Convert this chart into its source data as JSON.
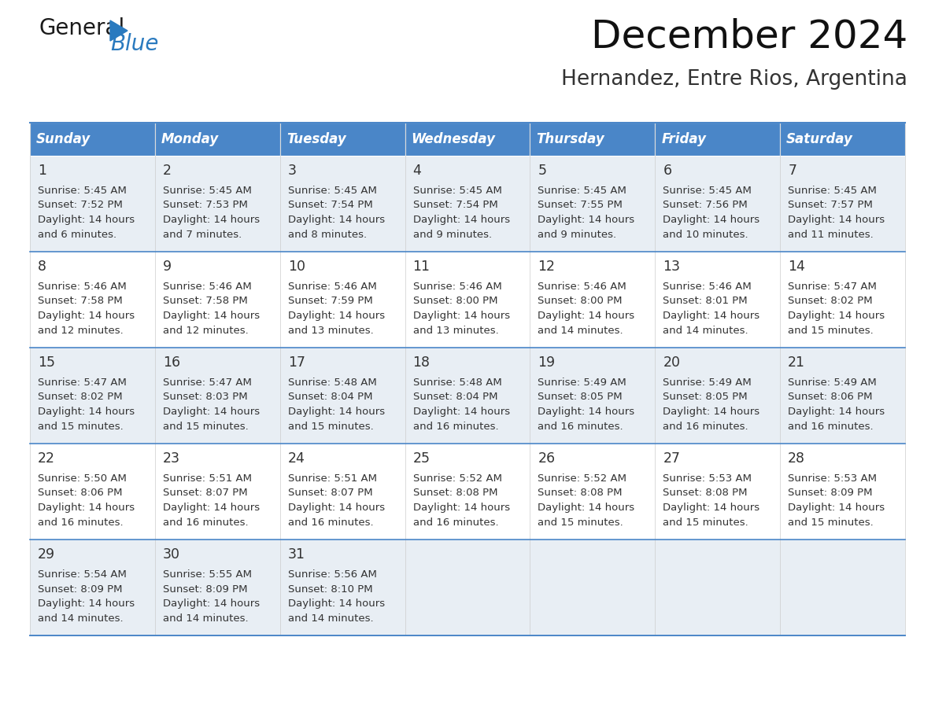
{
  "title": "December 2024",
  "subtitle": "Hernandez, Entre Rios, Argentina",
  "header_color": "#4a86c8",
  "header_text_color": "#ffffff",
  "odd_row_color": "#e8eef4",
  "even_row_color": "#ffffff",
  "border_color": "#4a86c8",
  "text_color": "#333333",
  "days_of_week": [
    "Sunday",
    "Monday",
    "Tuesday",
    "Wednesday",
    "Thursday",
    "Friday",
    "Saturday"
  ],
  "weeks": [
    [
      {
        "day": "1",
        "sunrise": "5:45 AM",
        "sunset": "7:52 PM",
        "daylight_h": "14 hours",
        "daylight_m": "and 6 minutes."
      },
      {
        "day": "2",
        "sunrise": "5:45 AM",
        "sunset": "7:53 PM",
        "daylight_h": "14 hours",
        "daylight_m": "and 7 minutes."
      },
      {
        "day": "3",
        "sunrise": "5:45 AM",
        "sunset": "7:54 PM",
        "daylight_h": "14 hours",
        "daylight_m": "and 8 minutes."
      },
      {
        "day": "4",
        "sunrise": "5:45 AM",
        "sunset": "7:54 PM",
        "daylight_h": "14 hours",
        "daylight_m": "and 9 minutes."
      },
      {
        "day": "5",
        "sunrise": "5:45 AM",
        "sunset": "7:55 PM",
        "daylight_h": "14 hours",
        "daylight_m": "and 9 minutes."
      },
      {
        "day": "6",
        "sunrise": "5:45 AM",
        "sunset": "7:56 PM",
        "daylight_h": "14 hours",
        "daylight_m": "and 10 minutes."
      },
      {
        "day": "7",
        "sunrise": "5:45 AM",
        "sunset": "7:57 PM",
        "daylight_h": "14 hours",
        "daylight_m": "and 11 minutes."
      }
    ],
    [
      {
        "day": "8",
        "sunrise": "5:46 AM",
        "sunset": "7:58 PM",
        "daylight_h": "14 hours",
        "daylight_m": "and 12 minutes."
      },
      {
        "day": "9",
        "sunrise": "5:46 AM",
        "sunset": "7:58 PM",
        "daylight_h": "14 hours",
        "daylight_m": "and 12 minutes."
      },
      {
        "day": "10",
        "sunrise": "5:46 AM",
        "sunset": "7:59 PM",
        "daylight_h": "14 hours",
        "daylight_m": "and 13 minutes."
      },
      {
        "day": "11",
        "sunrise": "5:46 AM",
        "sunset": "8:00 PM",
        "daylight_h": "14 hours",
        "daylight_m": "and 13 minutes."
      },
      {
        "day": "12",
        "sunrise": "5:46 AM",
        "sunset": "8:00 PM",
        "daylight_h": "14 hours",
        "daylight_m": "and 14 minutes."
      },
      {
        "day": "13",
        "sunrise": "5:46 AM",
        "sunset": "8:01 PM",
        "daylight_h": "14 hours",
        "daylight_m": "and 14 minutes."
      },
      {
        "day": "14",
        "sunrise": "5:47 AM",
        "sunset": "8:02 PM",
        "daylight_h": "14 hours",
        "daylight_m": "and 15 minutes."
      }
    ],
    [
      {
        "day": "15",
        "sunrise": "5:47 AM",
        "sunset": "8:02 PM",
        "daylight_h": "14 hours",
        "daylight_m": "and 15 minutes."
      },
      {
        "day": "16",
        "sunrise": "5:47 AM",
        "sunset": "8:03 PM",
        "daylight_h": "14 hours",
        "daylight_m": "and 15 minutes."
      },
      {
        "day": "17",
        "sunrise": "5:48 AM",
        "sunset": "8:04 PM",
        "daylight_h": "14 hours",
        "daylight_m": "and 15 minutes."
      },
      {
        "day": "18",
        "sunrise": "5:48 AM",
        "sunset": "8:04 PM",
        "daylight_h": "14 hours",
        "daylight_m": "and 16 minutes."
      },
      {
        "day": "19",
        "sunrise": "5:49 AM",
        "sunset": "8:05 PM",
        "daylight_h": "14 hours",
        "daylight_m": "and 16 minutes."
      },
      {
        "day": "20",
        "sunrise": "5:49 AM",
        "sunset": "8:05 PM",
        "daylight_h": "14 hours",
        "daylight_m": "and 16 minutes."
      },
      {
        "day": "21",
        "sunrise": "5:49 AM",
        "sunset": "8:06 PM",
        "daylight_h": "14 hours",
        "daylight_m": "and 16 minutes."
      }
    ],
    [
      {
        "day": "22",
        "sunrise": "5:50 AM",
        "sunset": "8:06 PM",
        "daylight_h": "14 hours",
        "daylight_m": "and 16 minutes."
      },
      {
        "day": "23",
        "sunrise": "5:51 AM",
        "sunset": "8:07 PM",
        "daylight_h": "14 hours",
        "daylight_m": "and 16 minutes."
      },
      {
        "day": "24",
        "sunrise": "5:51 AM",
        "sunset": "8:07 PM",
        "daylight_h": "14 hours",
        "daylight_m": "and 16 minutes."
      },
      {
        "day": "25",
        "sunrise": "5:52 AM",
        "sunset": "8:08 PM",
        "daylight_h": "14 hours",
        "daylight_m": "and 16 minutes."
      },
      {
        "day": "26",
        "sunrise": "5:52 AM",
        "sunset": "8:08 PM",
        "daylight_h": "14 hours",
        "daylight_m": "and 15 minutes."
      },
      {
        "day": "27",
        "sunrise": "5:53 AM",
        "sunset": "8:08 PM",
        "daylight_h": "14 hours",
        "daylight_m": "and 15 minutes."
      },
      {
        "day": "28",
        "sunrise": "5:53 AM",
        "sunset": "8:09 PM",
        "daylight_h": "14 hours",
        "daylight_m": "and 15 minutes."
      }
    ],
    [
      {
        "day": "29",
        "sunrise": "5:54 AM",
        "sunset": "8:09 PM",
        "daylight_h": "14 hours",
        "daylight_m": "and 14 minutes."
      },
      {
        "day": "30",
        "sunrise": "5:55 AM",
        "sunset": "8:09 PM",
        "daylight_h": "14 hours",
        "daylight_m": "and 14 minutes."
      },
      {
        "day": "31",
        "sunrise": "5:56 AM",
        "sunset": "8:10 PM",
        "daylight_h": "14 hours",
        "daylight_m": "and 14 minutes."
      },
      null,
      null,
      null,
      null
    ]
  ],
  "logo_color_general": "#1a1a1a",
  "logo_color_blue": "#2a7abf",
  "logo_triangle_color": "#2a7abf",
  "fig_width": 11.88,
  "fig_height": 9.18,
  "dpi": 100
}
